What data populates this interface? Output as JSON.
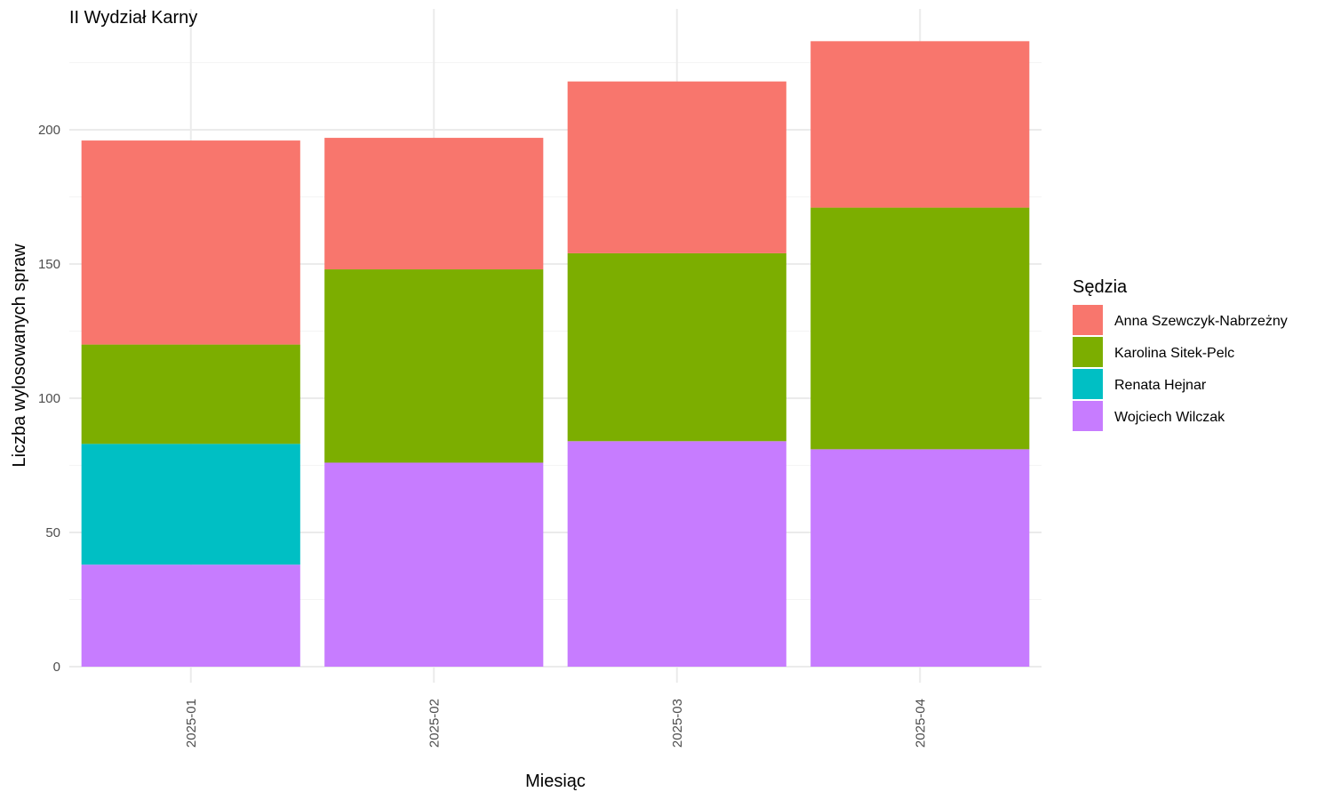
{
  "chart_data": {
    "type": "bar",
    "stacked": true,
    "title": "II Wydział Karny",
    "xlabel": "Miesiąc",
    "ylabel": "Liczba wylosowanych spraw",
    "categories": [
      "2025-01",
      "2025-02",
      "2025-03",
      "2025-04"
    ],
    "ylim": [
      0,
      240
    ],
    "yticks": [
      0,
      50,
      100,
      150,
      200
    ],
    "grid": true,
    "legend": {
      "title": "Sędzia",
      "position": "right"
    },
    "series": [
      {
        "name": "Wojciech Wilczak",
        "color": "#C77CFF",
        "values": [
          38,
          76,
          84,
          81
        ]
      },
      {
        "name": "Renata Hejnar",
        "color": "#00BFC4",
        "values": [
          45,
          0,
          0,
          0
        ]
      },
      {
        "name": "Karolina Sitek-Pelc",
        "color": "#7CAE00",
        "values": [
          37,
          72,
          70,
          90
        ]
      },
      {
        "name": "Anna Szewczyk-Nabrzeżny",
        "color": "#F8766D",
        "values": [
          76,
          49,
          64,
          62
        ]
      }
    ],
    "legend_order": [
      "Anna Szewczyk-Nabrzeżny",
      "Karolina Sitek-Pelc",
      "Renata Hejnar",
      "Wojciech Wilczak"
    ]
  }
}
